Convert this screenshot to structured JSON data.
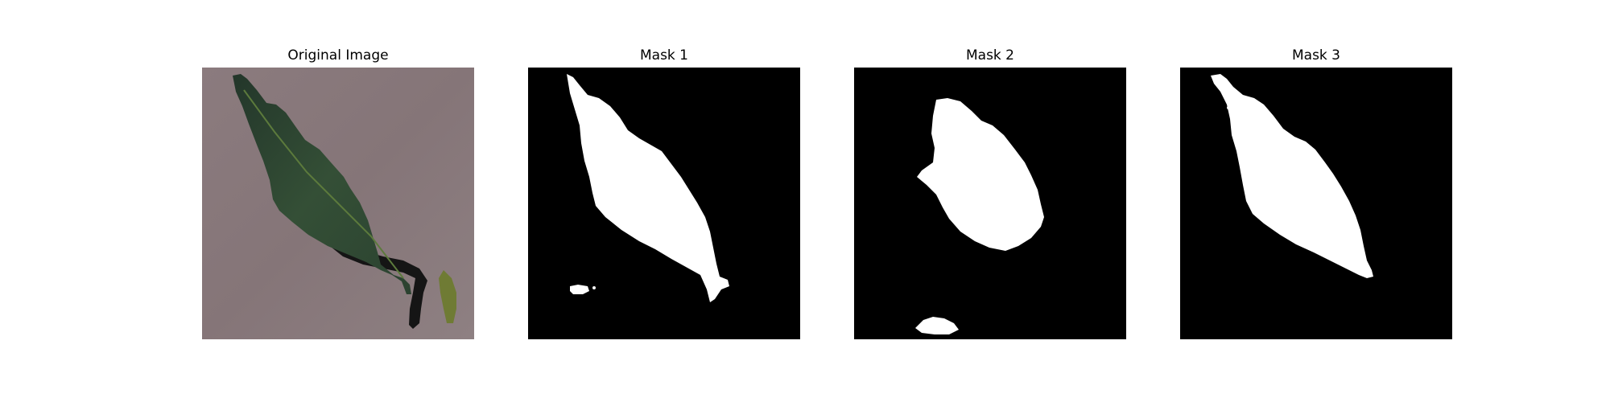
{
  "figure": {
    "panels": [
      {
        "title": "Original Image",
        "kind": "photo"
      },
      {
        "title": "Mask 1",
        "kind": "mask"
      },
      {
        "title": "Mask 2",
        "kind": "mask"
      },
      {
        "title": "Mask 3",
        "kind": "mask"
      }
    ]
  },
  "colors": {
    "background": "#ffffff",
    "mask_background": "#000000",
    "mask_foreground": "#ffffff",
    "photo_background": "#8a7b7d",
    "leaf": "#2f4a34",
    "leaf_shadow": "#141414"
  }
}
